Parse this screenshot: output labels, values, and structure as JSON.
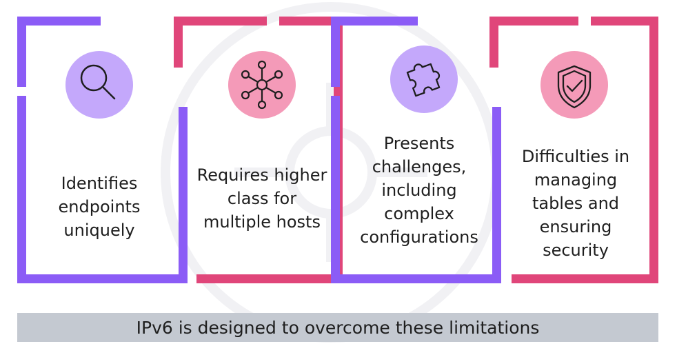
{
  "cards": [
    {
      "lines": [
        "Identifies",
        "endpoints",
        "uniquely"
      ],
      "icon": "magnifier-icon",
      "color": "#8b5cf6",
      "icon_bg": "#c4a8fb"
    },
    {
      "lines": [
        "Requires higher",
        "class for",
        "multiple hosts"
      ],
      "icon": "network-hub-icon",
      "color": "#e0467a",
      "icon_bg": "#f49ab8"
    },
    {
      "lines": [
        "Presents",
        "challenges,",
        "including",
        "complex",
        "configurations"
      ],
      "icon": "puzzle-piece-icon",
      "color": "#8b5cf6",
      "icon_bg": "#c4a8fb"
    },
    {
      "lines": [
        "Difficulties in",
        "managing",
        "tables and",
        "ensuring",
        "security"
      ],
      "icon": "shield-check-icon",
      "color": "#e0467a",
      "icon_bg": "#f49ab8"
    }
  ],
  "banner": {
    "text": "IPv6 is designed to overcome these limitations",
    "color": "#c4c9d1"
  }
}
